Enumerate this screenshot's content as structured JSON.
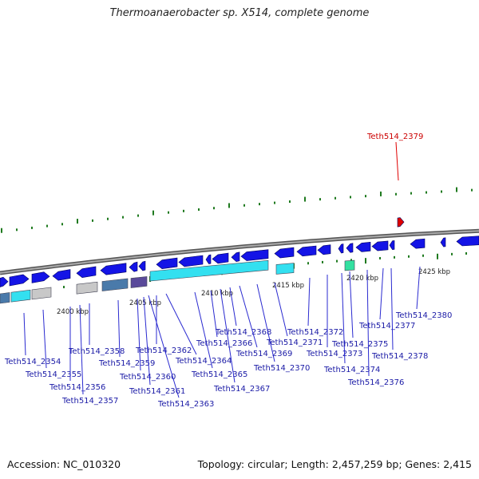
{
  "title": "Thermoanaerobacter sp. X514, complete genome",
  "accession": "Accession: NC_010320",
  "summary": "Topology: circular; Length: 2,457,259 bp; Genes: 2,415",
  "colors": {
    "gene_blue": "#1414e6",
    "highlight_red": "#e00000",
    "backbone_gray": "#7a7a7a",
    "tick_green": "#1f7a1f",
    "label_blue": "#1a1aa6",
    "label_red": "#cc0000",
    "cyan_block": "#33e0f0",
    "steel_block": "#4a7aaa",
    "light_gray_block": "#c8c8c8",
    "purple_block": "#5a4a9a",
    "teal_block": "#33e0a0"
  },
  "kbp_labels": [
    "2400 kbp",
    "2405 kbp",
    "2410 kbp",
    "2415 kbp",
    "2420 kbp",
    "2425 kbp"
  ],
  "genes": [
    "Teth514_2354",
    "Teth514_2355",
    "Teth514_2356",
    "Teth514_2357",
    "Teth514_2358",
    "Teth514_2359",
    "Teth514_2360",
    "Teth514_2361",
    "Teth514_2362",
    "Teth514_2363",
    "Teth514_2364",
    "Teth514_2365",
    "Teth514_2366",
    "Teth514_2367",
    "Teth514_2368",
    "Teth514_2369",
    "Teth514_2370",
    "Teth514_2371",
    "Teth514_2372",
    "Teth514_2373",
    "Teth514_2374",
    "Teth514_2375",
    "Teth514_2376",
    "Teth514_2377",
    "Teth514_2378",
    "Teth514_2380"
  ],
  "highlighted_gene": "Teth514_2379"
}
